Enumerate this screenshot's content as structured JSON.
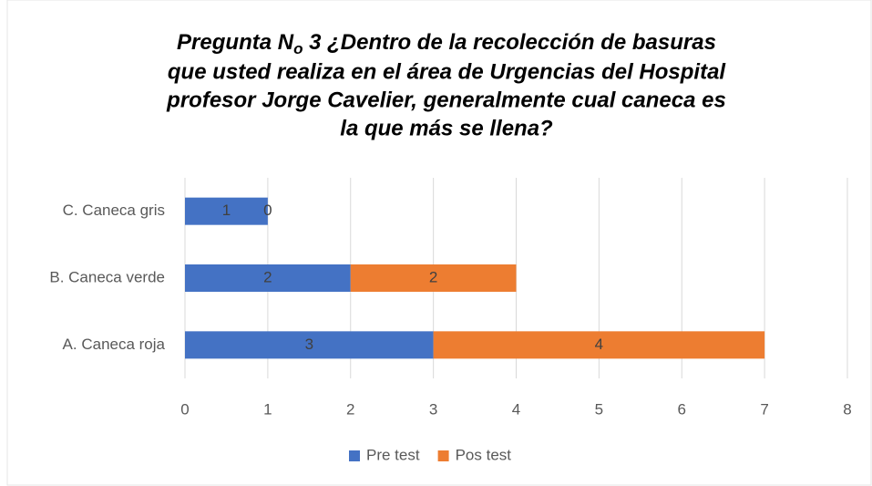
{
  "chart_data": {
    "type": "stacked_barh",
    "title": [
      "Pregunta N",
      "o",
      " 3 ¿Dentro de la recolección de basuras",
      "que usted realiza en el área de Urgencias del Hospital",
      "profesor Jorge Cavelier, generalmente cual caneca es",
      "la que más se llena?"
    ],
    "categories": [
      "A. Caneca roja",
      "B. Caneca verde",
      "C. Caneca gris"
    ],
    "series": [
      {
        "name": "Pre test",
        "color": "#4472c4",
        "values": [
          3,
          2,
          1
        ]
      },
      {
        "name": "Pos test",
        "color": "#ed7d31",
        "values": [
          4,
          2,
          0
        ]
      }
    ],
    "xlim": [
      0,
      8
    ],
    "xticks": [
      0,
      1,
      2,
      3,
      4,
      5,
      6,
      7,
      8
    ],
    "grid": true,
    "legend": "bottom"
  }
}
